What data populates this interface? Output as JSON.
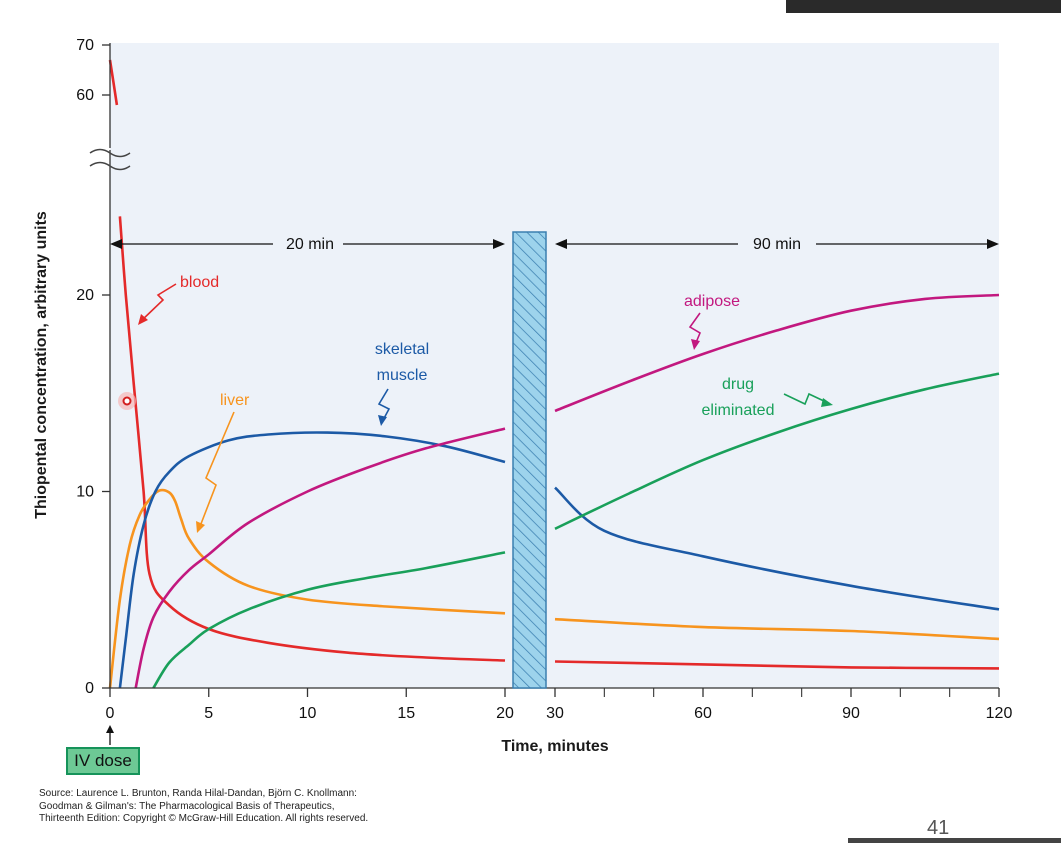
{
  "colors": {
    "blood": "#e42a2a",
    "liver": "#f7941e",
    "skeletal_muscle": "#1c5aa6",
    "adipose": "#c2187f",
    "drug_eliminated": "#19a05a",
    "plot_background": "#edf2f9",
    "break_bar": "#9dd3ec"
  },
  "y_axis_title": "Thiopental concentration, arbitrary units",
  "x_axis_title": "Time, minutes",
  "iv_dose_label": "IV dose",
  "annotations": {
    "first_interval": "20 min",
    "second_interval": "90 min"
  },
  "curve_labels": {
    "blood": "blood",
    "liver": "liver",
    "skeletal_muscle_line1": "skeletal",
    "skeletal_muscle_line2": "muscle",
    "adipose": "adipose",
    "drug_eliminated_line1": "drug",
    "drug_eliminated_line2": "eliminated"
  },
  "source": {
    "line1": "Source: Laurence L. Brunton, Randa Hilal-Dandan, Björn C. Knollmann:",
    "line2": "Goodman & Gilman's: The Pharmacological Basis of Therapeutics,",
    "line3": "Thirteenth Edition: Copyright © McGraw-Hill Education. All rights reserved."
  },
  "page_number": "41",
  "chart_data": {
    "type": "line",
    "xlabel": "Time, minutes",
    "ylabel": "Thiopental concentration, arbitrary units",
    "x_segments": [
      {
        "range": [
          0,
          20
        ],
        "ticks": [
          0,
          5,
          10,
          15,
          20
        ]
      },
      {
        "range": [
          30,
          120
        ],
        "ticks": [
          30,
          60,
          90,
          120
        ],
        "minor_ticks": [
          40,
          50,
          70,
          80,
          100,
          110
        ]
      }
    ],
    "y_segments": [
      {
        "range": [
          0,
          25
        ],
        "ticks": [
          0,
          10,
          20
        ]
      },
      {
        "range": [
          58,
          70
        ],
        "ticks": [
          60,
          70
        ]
      }
    ],
    "ylim": [
      0,
      70
    ],
    "axis_break_y": true,
    "axis_break_x": true,
    "series": [
      {
        "name": "blood",
        "points": [
          [
            0,
            67
          ],
          [
            0.35,
            58
          ],
          [
            0.5,
            24
          ],
          [
            0.8,
            20
          ],
          [
            1.2,
            15.5
          ],
          [
            1.7,
            10
          ],
          [
            2.0,
            5.8
          ],
          [
            3.0,
            4.2
          ],
          [
            5,
            3.0
          ],
          [
            8,
            2.3
          ],
          [
            12,
            1.8
          ],
          [
            16,
            1.55
          ],
          [
            20,
            1.4
          ],
          [
            30,
            1.35
          ],
          [
            60,
            1.2
          ],
          [
            90,
            1.05
          ],
          [
            120,
            1.0
          ]
        ]
      },
      {
        "name": "liver",
        "points": [
          [
            0,
            0
          ],
          [
            0.5,
            4.5
          ],
          [
            1.0,
            7.3
          ],
          [
            1.5,
            8.8
          ],
          [
            2.0,
            9.6
          ],
          [
            2.5,
            10.05
          ],
          [
            3.0,
            9.95
          ],
          [
            3.3,
            9.5
          ],
          [
            3.6,
            8.6
          ],
          [
            4.0,
            7.6
          ],
          [
            5,
            6.4
          ],
          [
            7,
            5.2
          ],
          [
            10,
            4.5
          ],
          [
            14,
            4.15
          ],
          [
            20,
            3.8
          ],
          [
            30,
            3.5
          ],
          [
            60,
            3.1
          ],
          [
            90,
            2.9
          ],
          [
            120,
            2.5
          ]
        ]
      },
      {
        "name": "skeletal muscle",
        "points": [
          [
            0.5,
            0
          ],
          [
            0.8,
            2.5
          ],
          [
            1.2,
            5.8
          ],
          [
            1.7,
            8.3
          ],
          [
            2.3,
            10.0
          ],
          [
            3.0,
            11.0
          ],
          [
            4,
            11.8
          ],
          [
            6,
            12.6
          ],
          [
            8,
            12.9
          ],
          [
            11,
            13.0
          ],
          [
            14,
            12.8
          ],
          [
            17,
            12.3
          ],
          [
            20,
            11.5
          ],
          [
            30,
            10.2
          ],
          [
            40,
            8.0
          ],
          [
            60,
            6.7
          ],
          [
            90,
            5.2
          ],
          [
            120,
            4.0
          ]
        ]
      },
      {
        "name": "adipose",
        "points": [
          [
            1.3,
            0
          ],
          [
            1.7,
            2.0
          ],
          [
            2.2,
            3.6
          ],
          [
            3,
            4.9
          ],
          [
            4,
            6.0
          ],
          [
            5,
            6.8
          ],
          [
            7,
            8.4
          ],
          [
            10,
            10.0
          ],
          [
            13,
            11.2
          ],
          [
            16,
            12.2
          ],
          [
            20,
            13.2
          ],
          [
            30,
            14.1
          ],
          [
            45,
            15.6
          ],
          [
            60,
            17.0
          ],
          [
            75,
            18.2
          ],
          [
            90,
            19.2
          ],
          [
            105,
            19.8
          ],
          [
            120,
            20.0
          ]
        ]
      },
      {
        "name": "drug eliminated",
        "points": [
          [
            2.2,
            0
          ],
          [
            3,
            1.3
          ],
          [
            4,
            2.2
          ],
          [
            5,
            3.0
          ],
          [
            7,
            4.0
          ],
          [
            10,
            5.0
          ],
          [
            13,
            5.6
          ],
          [
            16,
            6.1
          ],
          [
            20,
            6.9
          ],
          [
            30,
            8.1
          ],
          [
            45,
            9.9
          ],
          [
            60,
            11.6
          ],
          [
            75,
            13.0
          ],
          [
            90,
            14.2
          ],
          [
            105,
            15.2
          ],
          [
            120,
            16.0
          ]
        ]
      }
    ]
  }
}
